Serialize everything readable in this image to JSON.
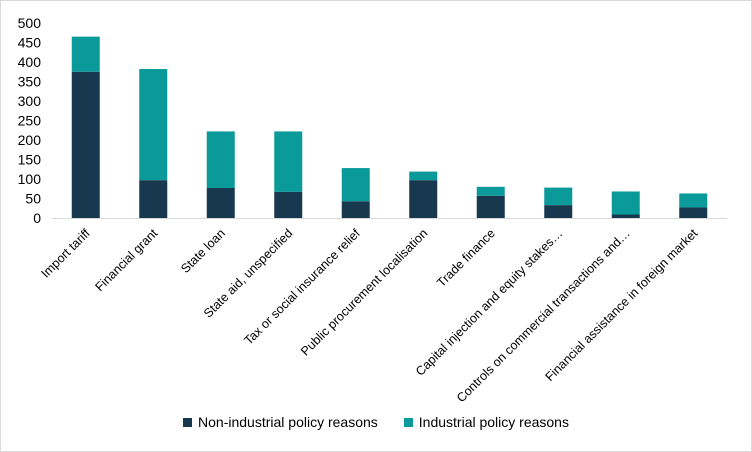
{
  "chart_data": {
    "type": "bar",
    "stacked": true,
    "categories": [
      "Import tariff",
      "Financial grant",
      "State loan",
      "State aid, unspecified",
      "Tax or social insurance relief",
      "Public procurement localisation",
      "Trade finance",
      "Capital injection and equity stakes…",
      "Controls on commercial transactions and…",
      "Financial assistance in foreign market"
    ],
    "series": [
      {
        "name": "Non-industrial policy reasons",
        "color": "#17384e",
        "values": [
          375,
          97,
          77,
          67,
          43,
          97,
          57,
          33,
          9,
          27
        ]
      },
      {
        "name": "Industrial policy reasons",
        "color": "#0a9a9a",
        "values": [
          90,
          285,
          145,
          155,
          85,
          22,
          23,
          45,
          59,
          36
        ]
      }
    ],
    "ylim": [
      0,
      500
    ],
    "yticks": [
      0,
      50,
      100,
      150,
      200,
      250,
      300,
      350,
      400,
      450,
      500
    ],
    "grid": false,
    "legend_position": "bottom",
    "title": "",
    "xlabel": "",
    "ylabel": ""
  },
  "legend": {
    "items": [
      {
        "label": "Non-industrial policy reasons",
        "color": "#17384e"
      },
      {
        "label": "Industrial policy reasons",
        "color": "#0a9a9a"
      }
    ]
  }
}
